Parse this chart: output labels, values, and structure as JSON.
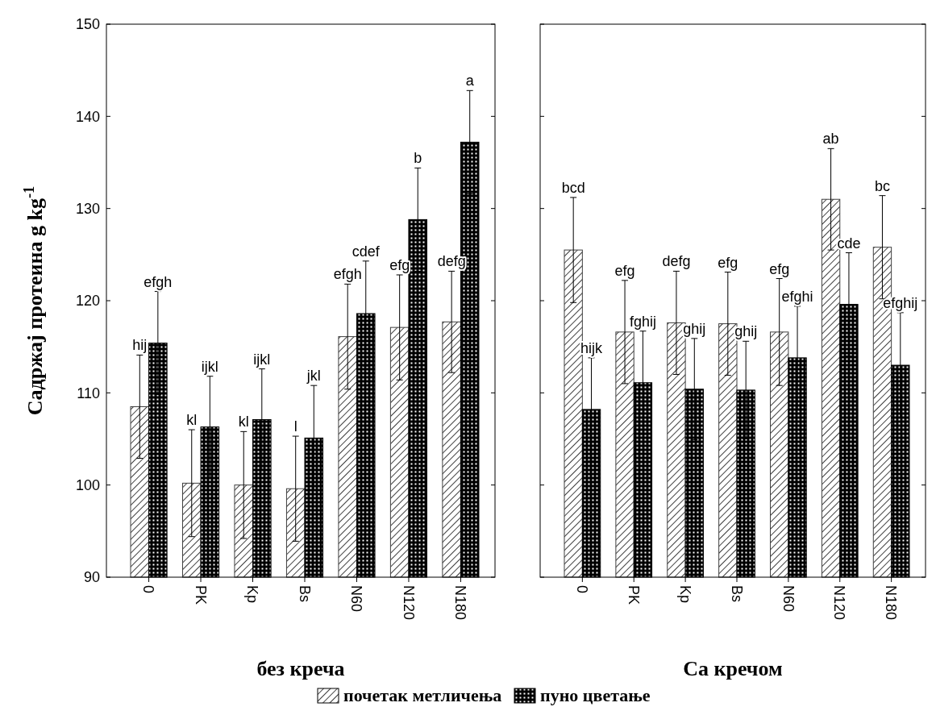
{
  "chart_data": [
    {
      "type": "bar",
      "xlabel": "без креча",
      "ylabel": "Садржај протеина g kg$^{-1}$",
      "categories": [
        "0",
        "PK",
        "Kp",
        "Bs",
        "N60",
        "N120",
        "N180"
      ],
      "series": [
        {
          "name": "почетак метличења",
          "color": "#404040",
          "values": [
            108.5,
            100.2,
            100.0,
            99.6,
            116.1,
            117.1,
            117.7
          ],
          "errors": [
            5.6,
            5.8,
            5.8,
            5.7,
            5.7,
            5.7,
            5.5
          ]
        },
        {
          "name": "пуно цветање",
          "color": "#000000",
          "values": [
            115.4,
            106.3,
            107.1,
            105.1,
            118.6,
            128.8,
            137.2
          ],
          "errors": [
            5.6,
            5.5,
            5.5,
            5.7,
            5.7,
            5.6,
            5.6
          ]
        }
      ],
      "ylim": [
        90,
        150
      ],
      "yticks": [
        90,
        100,
        110,
        120,
        130,
        140,
        150
      ],
      "grid": false,
      "legend": "bottom",
      "annotations": [
        "hij",
        "efgh",
        "kl",
        "ijkl",
        "kl",
        "ijkl",
        "l",
        "jkl",
        "efgh",
        "cdef",
        "efg",
        "b",
        "defg",
        "a"
      ]
    },
    {
      "type": "bar",
      "xlabel": "Са кречом",
      "categories": [
        "0",
        "PK",
        "Kp",
        "Bs",
        "N60",
        "N120",
        "N180"
      ],
      "series": [
        {
          "color": "#404040",
          "values": [
            125.5,
            116.6,
            117.6,
            117.5,
            116.6,
            131.0,
            125.8
          ],
          "errors": [
            5.7,
            5.6,
            5.6,
            5.6,
            5.8,
            5.5,
            5.6
          ]
        },
        {
          "color": "#000000",
          "values": [
            108.2,
            111.1,
            110.4,
            110.3,
            113.8,
            119.6,
            113.0
          ],
          "errors": [
            5.6,
            5.6,
            5.5,
            5.3,
            5.6,
            5.6,
            5.7
          ]
        }
      ],
      "ylim": [
        90,
        150
      ],
      "yticks": [
        90,
        100,
        110,
        120,
        130,
        140,
        150
      ],
      "grid": false,
      "tick_labels": "x",
      "annotations": [
        "bcd",
        "hijk",
        "efg",
        "fghij",
        "defg",
        "ghij",
        "efg",
        "ghij",
        "efg",
        "efghi",
        "ab",
        "cde",
        "bc",
        "efghij"
      ]
    }
  ]
}
